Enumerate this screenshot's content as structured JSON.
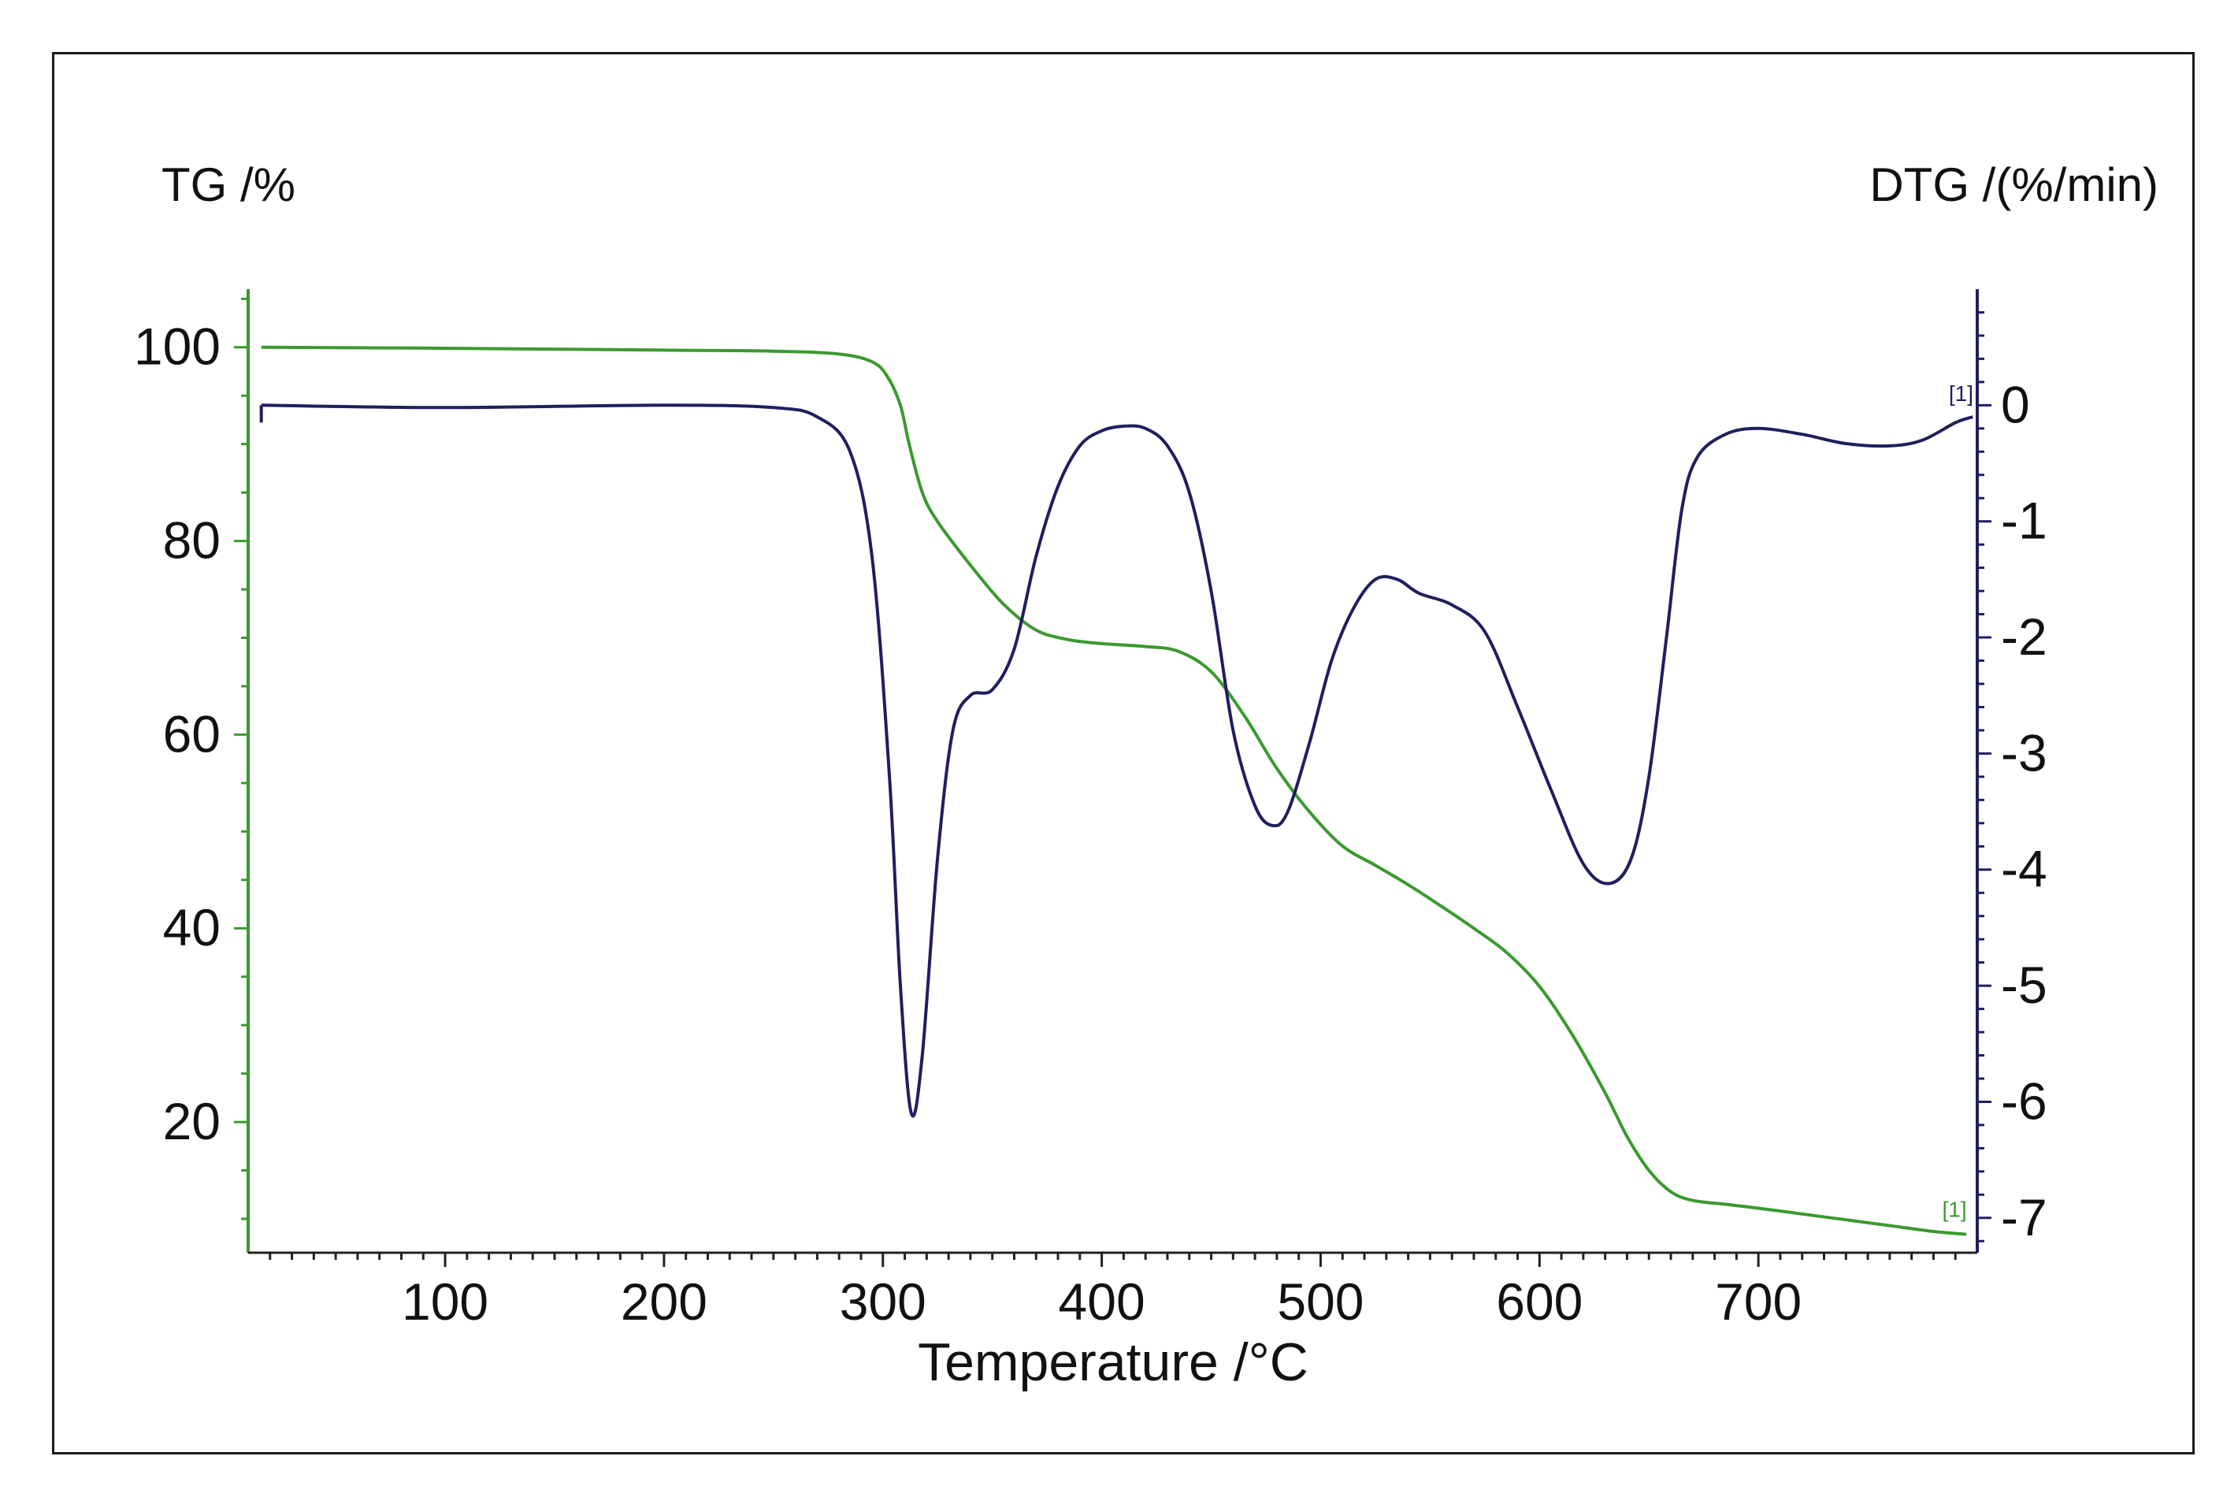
{
  "colors": {
    "tg": "#3a9a2e",
    "dtg": "#1f1f5e",
    "frame": "#1a1a1a",
    "text": "#111111"
  },
  "chart_data": {
    "type": "line",
    "title": "",
    "xlabel": "Temperature /°C",
    "ylabel_left": "TG /%",
    "ylabel_right": "DTG /(%/min)",
    "xlim": [
      10,
      800
    ],
    "ylim_left": [
      6.5,
      106
    ],
    "ylim_right": [
      -7.3,
      1.0
    ],
    "x_ticks": [
      100,
      200,
      300,
      400,
      500,
      600,
      700
    ],
    "y_ticks_left": [
      20,
      40,
      60,
      80,
      100
    ],
    "y_ticks_right": [
      0,
      -1,
      -2,
      -3,
      -4,
      -5,
      -6,
      -7
    ],
    "grid": false,
    "series": [
      {
        "name": "[1]",
        "axis": "left",
        "color": "#3a9a2e",
        "points": [
          [
            16,
            100
          ],
          [
            100,
            99.9
          ],
          [
            200,
            99.7
          ],
          [
            250,
            99.6
          ],
          [
            280,
            99.3
          ],
          [
            295,
            98.5
          ],
          [
            302,
            97
          ],
          [
            308,
            94
          ],
          [
            312,
            90
          ],
          [
            318,
            85
          ],
          [
            325,
            82
          ],
          [
            340,
            77.5
          ],
          [
            355,
            73.5
          ],
          [
            370,
            70.8
          ],
          [
            385,
            69.8
          ],
          [
            400,
            69.4
          ],
          [
            420,
            69.1
          ],
          [
            435,
            68.6
          ],
          [
            450,
            66.5
          ],
          [
            465,
            62
          ],
          [
            480,
            56.5
          ],
          [
            495,
            52
          ],
          [
            510,
            48.5
          ],
          [
            525,
            46.5
          ],
          [
            540,
            44.5
          ],
          [
            555,
            42.3
          ],
          [
            570,
            40
          ],
          [
            585,
            37.5
          ],
          [
            600,
            34
          ],
          [
            615,
            29
          ],
          [
            630,
            23
          ],
          [
            640,
            18.5
          ],
          [
            650,
            15
          ],
          [
            660,
            12.8
          ],
          [
            670,
            11.9
          ],
          [
            685,
            11.5
          ],
          [
            700,
            11.1
          ],
          [
            720,
            10.5
          ],
          [
            740,
            9.9
          ],
          [
            760,
            9.3
          ],
          [
            780,
            8.7
          ],
          [
            795,
            8.4
          ]
        ]
      },
      {
        "name": "[1]",
        "axis": "right",
        "color": "#1f1f5e",
        "points": [
          [
            16,
            0.0
          ],
          [
            100,
            -0.02
          ],
          [
            200,
            0.0
          ],
          [
            250,
            -0.02
          ],
          [
            270,
            -0.1
          ],
          [
            285,
            -0.4
          ],
          [
            295,
            -1.3
          ],
          [
            303,
            -3.2
          ],
          [
            308,
            -5.0
          ],
          [
            313,
            -6.1
          ],
          [
            318,
            -5.6
          ],
          [
            325,
            -3.9
          ],
          [
            332,
            -2.8
          ],
          [
            340,
            -2.5
          ],
          [
            350,
            -2.45
          ],
          [
            360,
            -2.1
          ],
          [
            370,
            -1.3
          ],
          [
            380,
            -0.7
          ],
          [
            390,
            -0.35
          ],
          [
            400,
            -0.22
          ],
          [
            410,
            -0.18
          ],
          [
            420,
            -0.2
          ],
          [
            430,
            -0.35
          ],
          [
            440,
            -0.75
          ],
          [
            450,
            -1.6
          ],
          [
            460,
            -2.8
          ],
          [
            470,
            -3.45
          ],
          [
            478,
            -3.62
          ],
          [
            485,
            -3.5
          ],
          [
            495,
            -2.9
          ],
          [
            505,
            -2.2
          ],
          [
            515,
            -1.75
          ],
          [
            525,
            -1.5
          ],
          [
            535,
            -1.5
          ],
          [
            545,
            -1.62
          ],
          [
            560,
            -1.72
          ],
          [
            575,
            -1.95
          ],
          [
            590,
            -2.6
          ],
          [
            605,
            -3.3
          ],
          [
            620,
            -3.95
          ],
          [
            632,
            -4.12
          ],
          [
            642,
            -3.9
          ],
          [
            650,
            -3.2
          ],
          [
            658,
            -2.0
          ],
          [
            665,
            -0.9
          ],
          [
            672,
            -0.45
          ],
          [
            685,
            -0.25
          ],
          [
            700,
            -0.2
          ],
          [
            720,
            -0.25
          ],
          [
            740,
            -0.33
          ],
          [
            760,
            -0.35
          ],
          [
            775,
            -0.3
          ],
          [
            790,
            -0.15
          ],
          [
            798,
            -0.1
          ]
        ]
      }
    ],
    "series_labels": [
      "[1]",
      "[1]"
    ]
  }
}
